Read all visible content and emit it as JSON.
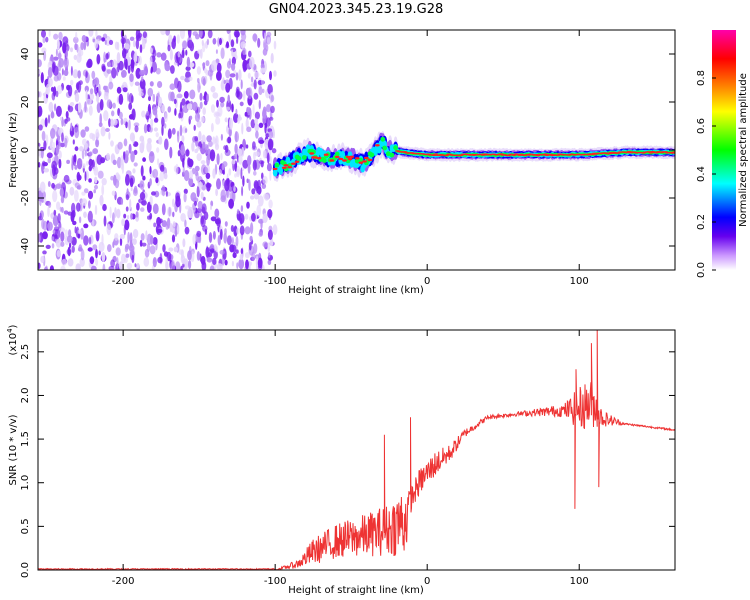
{
  "title": "GN04.2023.345.23.19.G28",
  "chart_data": [
    {
      "type": "heatmap",
      "panel": "spectrogram",
      "xlabel": "Height of straight line (km)",
      "ylabel": "Frequency (Hz)",
      "xlim": [
        -256,
        163
      ],
      "ylim": [
        -50,
        50
      ],
      "x_ticks": [
        -200,
        -100,
        0,
        100
      ],
      "y_ticks": [
        -40,
        -20,
        0,
        20,
        40
      ],
      "noise_region_x": [
        -256,
        -100
      ],
      "signal_ridge": [
        {
          "x": -100,
          "y": -8
        },
        {
          "x": -92,
          "y": -6
        },
        {
          "x": -85,
          "y": -3
        },
        {
          "x": -78,
          "y": -1
        },
        {
          "x": -70,
          "y": -2
        },
        {
          "x": -62,
          "y": -4
        },
        {
          "x": -55,
          "y": -3
        },
        {
          "x": -48,
          "y": -4
        },
        {
          "x": -42,
          "y": -6
        },
        {
          "x": -36,
          "y": -2
        },
        {
          "x": -30,
          "y": 3
        },
        {
          "x": -25,
          "y": 0
        },
        {
          "x": -15,
          "y": -1
        },
        {
          "x": 0,
          "y": -2
        },
        {
          "x": 20,
          "y": -2
        },
        {
          "x": 50,
          "y": -2
        },
        {
          "x": 80,
          "y": -2
        },
        {
          "x": 100,
          "y": -2
        },
        {
          "x": 130,
          "y": -1
        },
        {
          "x": 163,
          "y": -1
        }
      ],
      "colorbar": {
        "label": "Normalized spectral amplitude",
        "range": [
          0,
          1
        ],
        "ticks": [
          "0.0",
          "0.2",
          "0.4",
          "0.6",
          "0.8"
        ],
        "colors": [
          "#ffffff",
          "#cc99ff",
          "#6600ee",
          "#0000ff",
          "#00ffff",
          "#00ff00",
          "#ffff00",
          "#ff8800",
          "#ff0000",
          "#ff00aa"
        ]
      }
    },
    {
      "type": "line",
      "panel": "snr",
      "xlabel": "Height of straight line (km)",
      "ylabel": "SNR (10 * v/v)",
      "exponent_label": "(x10",
      "exponent_sup": "4",
      "exponent_close": ")",
      "xlim": [
        -256,
        163
      ],
      "ylim": [
        0,
        2.75
      ],
      "x_ticks": [
        -200,
        -100,
        0,
        100
      ],
      "y_ticks": [
        "0.0",
        "0.5",
        "1.0",
        "1.5",
        "2.0",
        "2.5"
      ],
      "color": "#ee3333",
      "envelope": [
        {
          "x": -256,
          "base": 0.0,
          "spread": 0.0
        },
        {
          "x": -100,
          "base": 0.0,
          "spread": 0.0
        },
        {
          "x": -85,
          "base": 0.05,
          "spread": 0.1
        },
        {
          "x": -75,
          "base": 0.15,
          "spread": 0.3
        },
        {
          "x": -60,
          "base": 0.25,
          "spread": 0.4
        },
        {
          "x": -40,
          "base": 0.3,
          "spread": 0.5
        },
        {
          "x": -25,
          "base": 0.35,
          "spread": 0.6
        },
        {
          "x": -14,
          "base": 0.4,
          "spread": 0.9
        },
        {
          "x": -12,
          "base": 0.7,
          "spread": 0.3
        },
        {
          "x": -5,
          "base": 0.95,
          "spread": 0.3
        },
        {
          "x": 5,
          "base": 1.15,
          "spread": 0.3
        },
        {
          "x": 15,
          "base": 1.3,
          "spread": 0.2
        },
        {
          "x": 25,
          "base": 1.55,
          "spread": 0.1
        },
        {
          "x": 40,
          "base": 1.74,
          "spread": 0.05
        },
        {
          "x": 60,
          "base": 1.78,
          "spread": 0.05
        },
        {
          "x": 90,
          "base": 1.8,
          "spread": 0.15
        },
        {
          "x": 100,
          "base": 1.75,
          "spread": 0.5
        },
        {
          "x": 108,
          "base": 1.8,
          "spread": 0.6
        },
        {
          "x": 115,
          "base": 1.7,
          "spread": 0.2
        },
        {
          "x": 130,
          "base": 1.67,
          "spread": 0.02
        },
        {
          "x": 163,
          "base": 1.6,
          "spread": 0.02
        }
      ],
      "spikes": [
        {
          "x": 97,
          "y": 0.7
        },
        {
          "x": 98,
          "y": 2.3
        },
        {
          "x": 108,
          "y": 2.6
        },
        {
          "x": 112,
          "y": 2.75
        },
        {
          "x": 113,
          "y": 0.95
        },
        {
          "x": -11,
          "y": 1.75
        },
        {
          "x": -28,
          "y": 1.55
        }
      ]
    }
  ]
}
